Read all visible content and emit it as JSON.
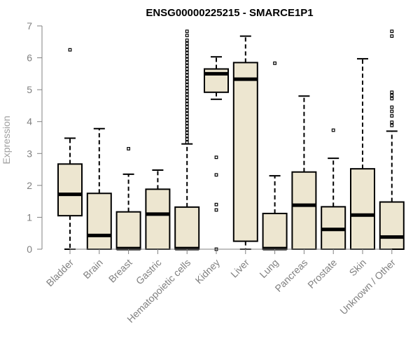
{
  "chart_data": {
    "type": "boxplot",
    "title": "ENSG00000225215 - SMARCE1P1",
    "xlabel": "",
    "ylabel": "Expression",
    "ylim": [
      0,
      7
    ],
    "yticks": [
      0,
      1,
      2,
      3,
      4,
      5,
      6,
      7
    ],
    "tick_labels": [
      "0",
      "1",
      "2",
      "3",
      "4",
      "5",
      "6",
      "7"
    ],
    "box_fill": "#ede6d0",
    "box_stroke": "#000000",
    "axis_color": "#808080",
    "categories": [
      "Bladder",
      "Brain",
      "Breast",
      "Gastric",
      "Hematopoietic cells",
      "Kidney",
      "Liver",
      "Lung",
      "Pancreas",
      "Prostate",
      "Skin",
      "Unknown / Other"
    ],
    "boxes": [
      {
        "name": "Bladder",
        "whisker_low": 0.0,
        "q1": 1.05,
        "median": 1.72,
        "q3": 2.67,
        "whisker_high": 3.48,
        "outliers": [
          6.25
        ]
      },
      {
        "name": "Brain",
        "whisker_low": 0.0,
        "q1": 0.0,
        "median": 0.43,
        "q3": 1.75,
        "whisker_high": 3.78,
        "outliers": []
      },
      {
        "name": "Breast",
        "whisker_low": 0.0,
        "q1": 0.0,
        "median": 0.02,
        "q3": 1.17,
        "whisker_high": 2.35,
        "outliers": [
          3.15
        ]
      },
      {
        "name": "Gastric",
        "whisker_low": 0.0,
        "q1": 0.0,
        "median": 1.1,
        "q3": 1.88,
        "whisker_high": 2.48,
        "outliers": []
      },
      {
        "name": "Hematopoietic cells",
        "whisker_low": 0.0,
        "q1": 0.0,
        "median": 0.02,
        "q3": 1.32,
        "whisker_high": 3.3,
        "outliers": [
          3.35,
          3.45,
          3.55,
          3.65,
          3.75,
          3.85,
          3.95,
          4.05,
          4.15,
          4.25,
          4.35,
          4.45,
          4.55,
          4.65,
          4.75,
          4.85,
          4.95,
          5.05,
          5.15,
          5.25,
          5.35,
          5.45,
          5.55,
          5.65,
          5.75,
          5.85,
          5.95,
          6.05,
          6.15,
          6.25,
          6.35,
          6.45,
          6.55,
          6.7,
          6.83
        ]
      },
      {
        "name": "Kidney",
        "whisker_low": 4.7,
        "q1": 4.92,
        "median": 5.5,
        "q3": 5.65,
        "whisker_high": 6.03,
        "outliers": [
          2.88,
          2.33,
          1.4,
          1.23,
          0.0
        ]
      },
      {
        "name": "Liver",
        "whisker_low": 0.0,
        "q1": 0.25,
        "median": 5.33,
        "q3": 5.85,
        "whisker_high": 6.68,
        "outliers": []
      },
      {
        "name": "Lung",
        "whisker_low": 0.0,
        "q1": 0.0,
        "median": 0.02,
        "q3": 1.12,
        "whisker_high": 2.3,
        "outliers": [
          5.83
        ]
      },
      {
        "name": "Pancreas",
        "whisker_low": 0.0,
        "q1": 0.0,
        "median": 1.38,
        "q3": 2.42,
        "whisker_high": 4.8,
        "outliers": []
      },
      {
        "name": "Prostate",
        "whisker_low": 0.0,
        "q1": 0.0,
        "median": 0.62,
        "q3": 1.33,
        "whisker_high": 2.85,
        "outliers": [
          3.73
        ]
      },
      {
        "name": "Skin",
        "whisker_low": 0.0,
        "q1": 0.0,
        "median": 1.07,
        "q3": 2.52,
        "whisker_high": 5.97,
        "outliers": []
      },
      {
        "name": "Unknown / Other",
        "whisker_low": 0.0,
        "q1": 0.0,
        "median": 0.38,
        "q3": 1.48,
        "whisker_high": 3.7,
        "outliers": [
          3.88,
          3.98,
          4.18,
          4.32,
          4.45,
          4.72,
          4.82,
          4.92,
          6.68,
          6.83
        ]
      }
    ]
  }
}
